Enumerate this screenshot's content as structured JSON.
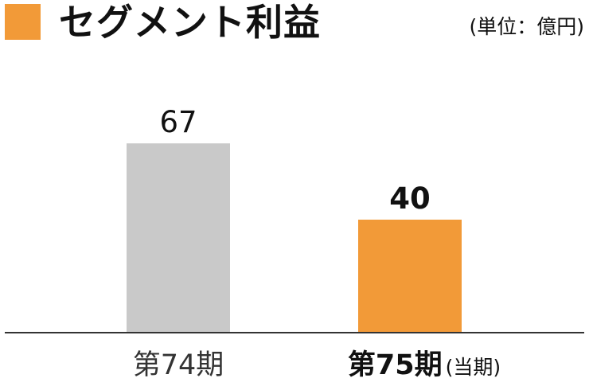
{
  "title": "セグメント利益",
  "unit": "(単位：億円)",
  "colors": {
    "accent": "#f29a38",
    "previous": "#c9c9c9",
    "axis": "#333333"
  },
  "chart_data": {
    "type": "bar",
    "title": "セグメント利益",
    "unit": "(単位：億円)",
    "categories": [
      "第74期",
      "第75期"
    ],
    "category_notes": [
      "",
      "(当期)"
    ],
    "values": [
      67,
      40
    ],
    "highlight_index": 1,
    "legend": "none",
    "grid": false
  }
}
